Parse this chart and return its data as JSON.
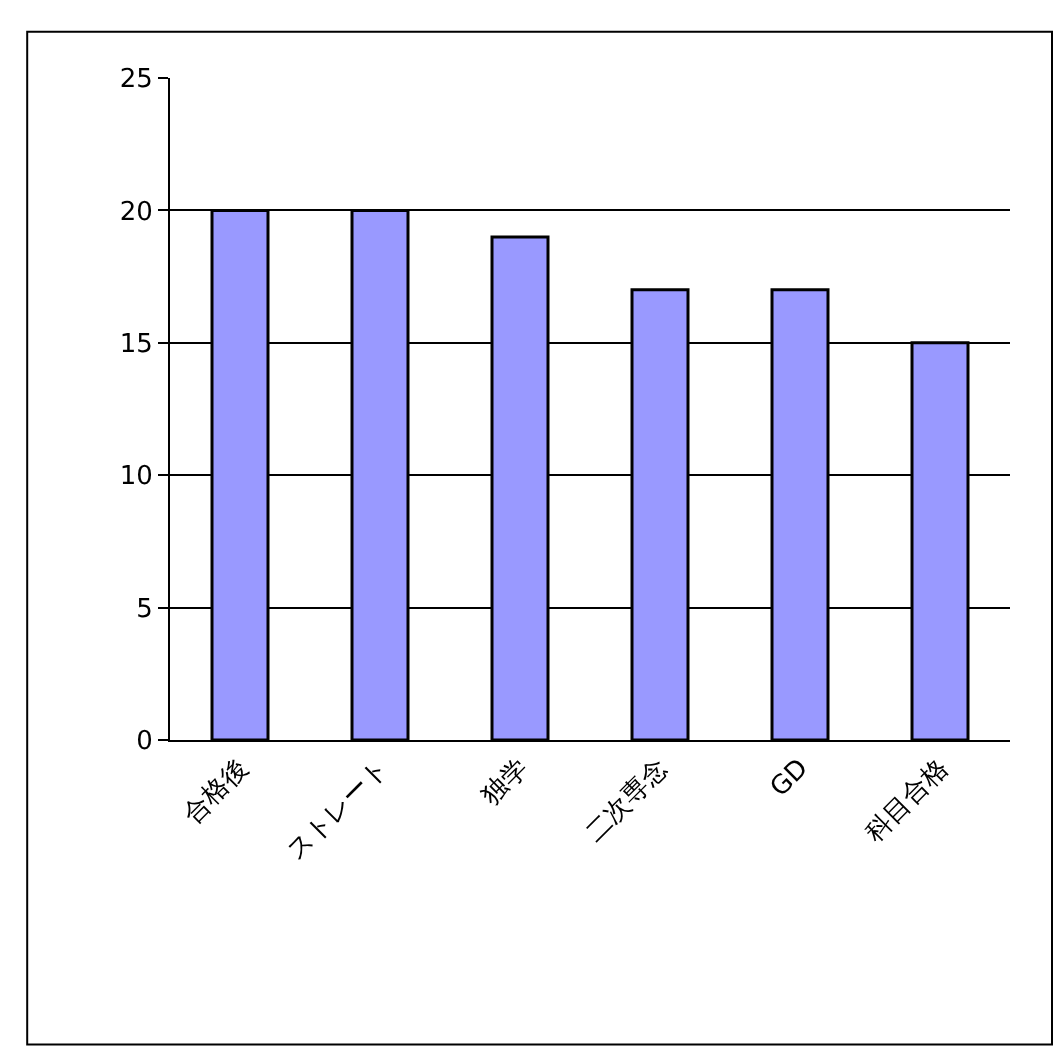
{
  "chart_data": {
    "type": "bar",
    "categories": [
      "合格後",
      "ストレート",
      "独学",
      "二次専念",
      "GD",
      "科目合格"
    ],
    "values": [
      20,
      20,
      19,
      17,
      17,
      15
    ],
    "color": "#9999ff",
    "ylim": [
      0,
      25
    ],
    "yticks": [
      0,
      5,
      10,
      15,
      20,
      25
    ],
    "grid": "y",
    "legend": false
  }
}
